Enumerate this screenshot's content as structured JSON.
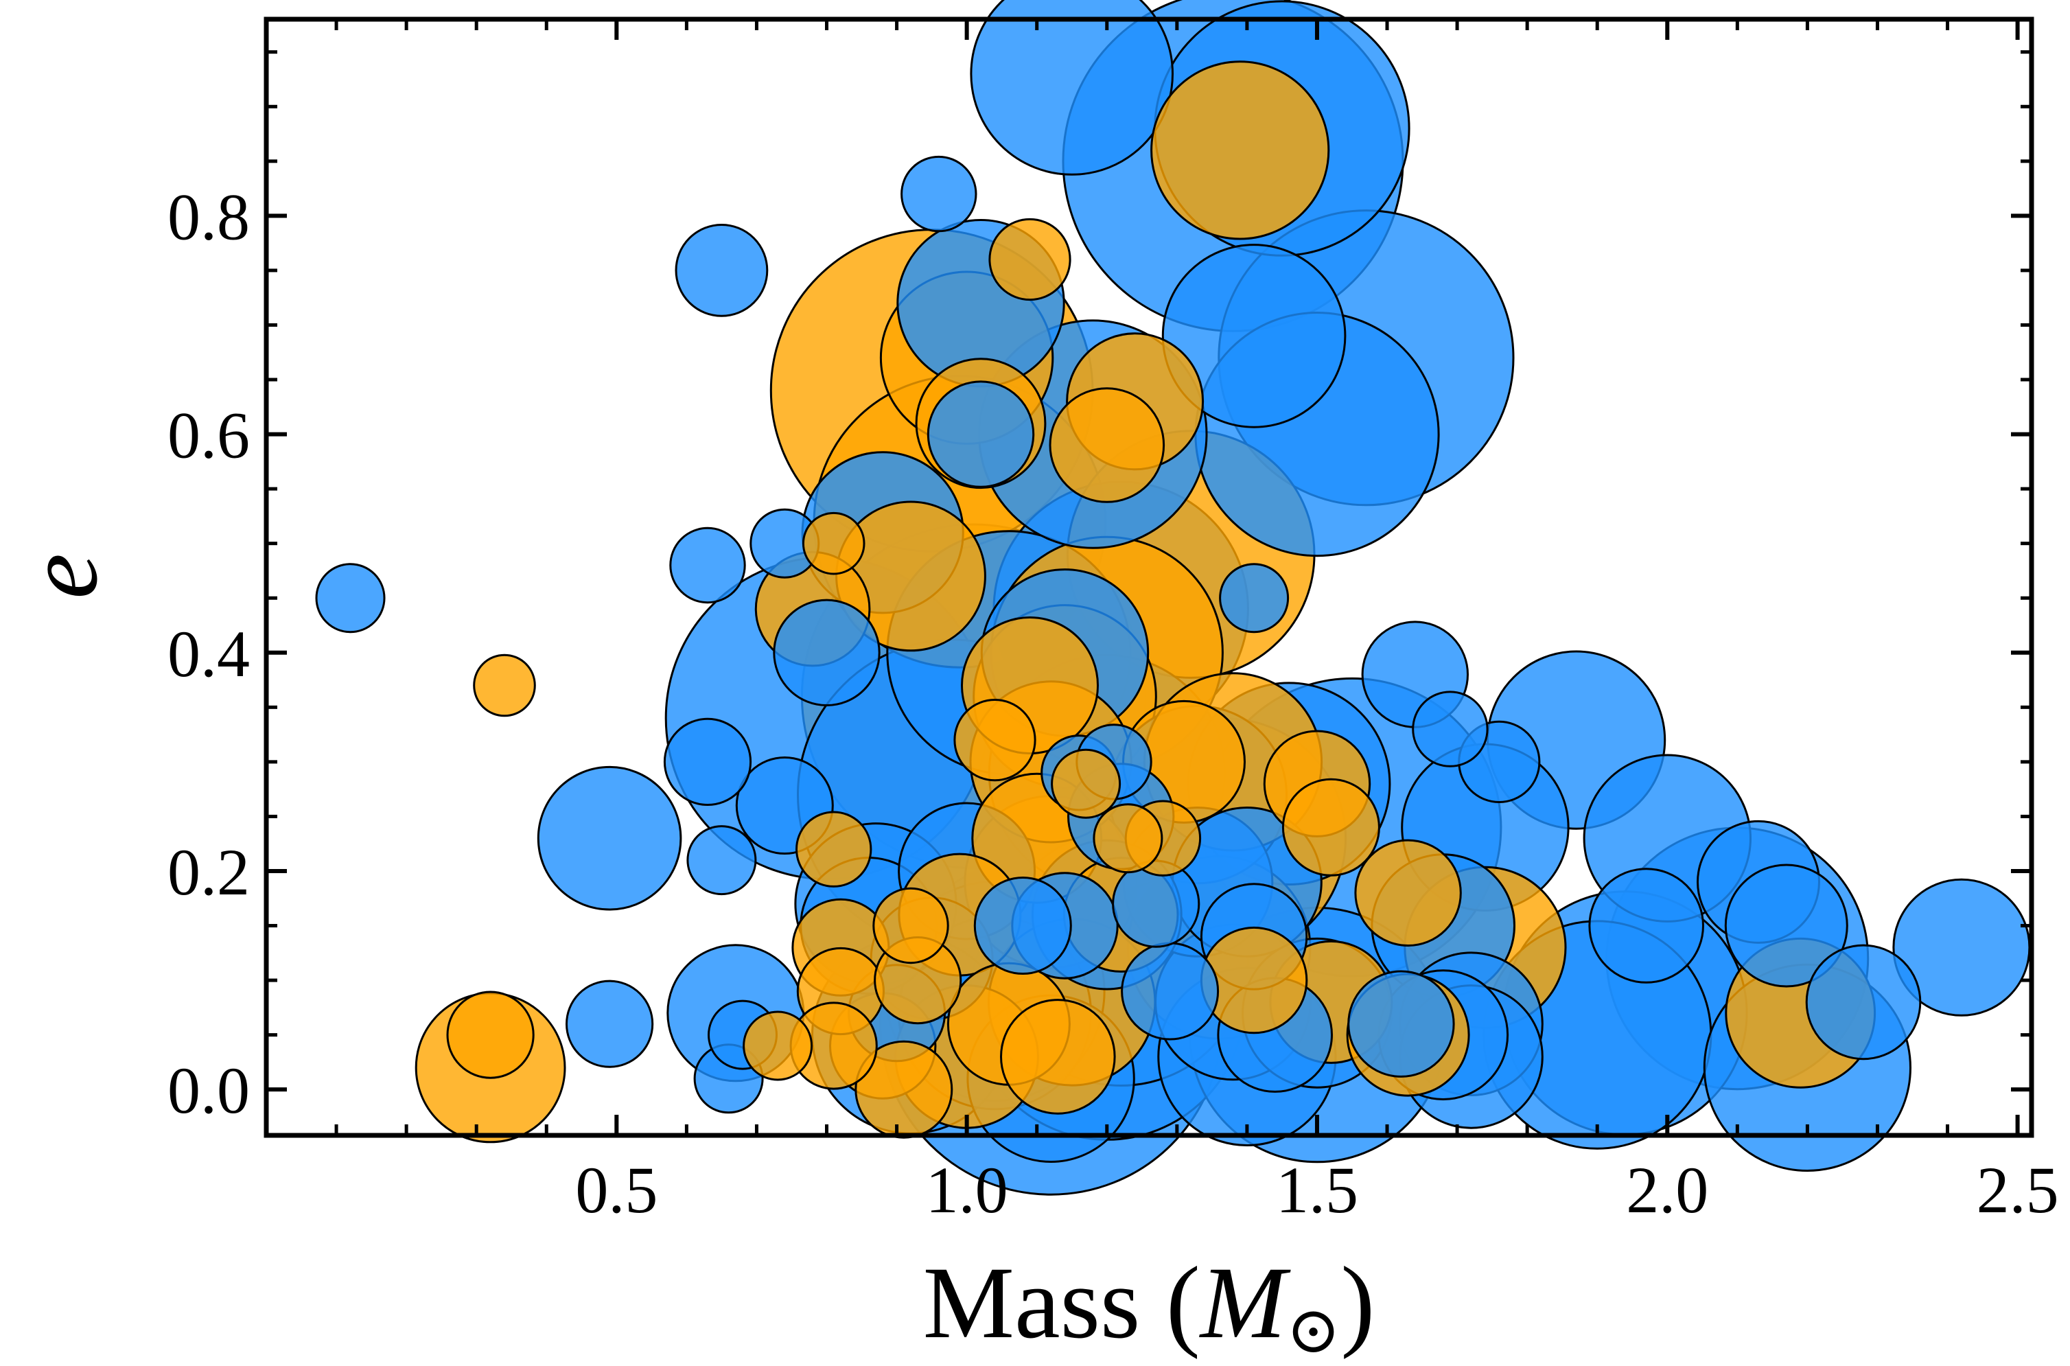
{
  "chart_data": {
    "type": "scatter",
    "title": "",
    "xlabel": {
      "main": "Mass (",
      "symbol": "M",
      "sub": "⊙",
      "close": ")"
    },
    "ylabel": "e",
    "xlim": [
      0.0,
      2.52
    ],
    "ylim": [
      -0.042,
      0.98
    ],
    "xticks": [
      0.5,
      1.0,
      1.5,
      2.0,
      2.5
    ],
    "xtick_labels": [
      "0.5",
      "1.0",
      "1.5",
      "2.0",
      "2.5"
    ],
    "yticks": [
      0.0,
      0.2,
      0.4,
      0.6,
      0.8
    ],
    "ytick_labels": [
      "0.0",
      "0.2",
      "0.4",
      "0.6",
      "0.8"
    ],
    "xminor_step": 0.1,
    "yminor_step": 0.05,
    "grid": false,
    "colors": {
      "blue": "#1e90ff",
      "orange": "#ffa500",
      "edge": "#000000"
    },
    "series": [
      {
        "color_key": "blue",
        "points": [
          {
            "x": 1.15,
            "y": 0.93,
            "s": 0.044
          },
          {
            "x": 1.38,
            "y": 0.85,
            "s": 0.125
          },
          {
            "x": 1.45,
            "y": 0.88,
            "s": 0.07
          },
          {
            "x": 0.96,
            "y": 0.82,
            "s": 0.006
          },
          {
            "x": 0.65,
            "y": 0.75,
            "s": 0.009
          },
          {
            "x": 1.02,
            "y": 0.72,
            "s": 0.03
          },
          {
            "x": 1.41,
            "y": 0.69,
            "s": 0.036
          },
          {
            "x": 1.57,
            "y": 0.67,
            "s": 0.094
          },
          {
            "x": 1.5,
            "y": 0.6,
            "s": 0.064
          },
          {
            "x": 1.18,
            "y": 0.6,
            "s": 0.056
          },
          {
            "x": 1.02,
            "y": 0.6,
            "s": 0.012
          },
          {
            "x": 0.88,
            "y": 0.51,
            "s": 0.028
          },
          {
            "x": 0.63,
            "y": 0.48,
            "s": 0.006
          },
          {
            "x": 0.74,
            "y": 0.5,
            "s": 0.005
          },
          {
            "x": 0.12,
            "y": 0.45,
            "s": 0.005
          },
          {
            "x": 1.41,
            "y": 0.45,
            "s": 0.005
          },
          {
            "x": 1.22,
            "y": 0.44,
            "s": 0.07
          },
          {
            "x": 1.06,
            "y": 0.4,
            "s": 0.064
          },
          {
            "x": 1.14,
            "y": 0.4,
            "s": 0.03
          },
          {
            "x": 0.8,
            "y": 0.4,
            "s": 0.012
          },
          {
            "x": 0.8,
            "y": 0.34,
            "s": 0.112
          },
          {
            "x": 0.63,
            "y": 0.3,
            "s": 0.008
          },
          {
            "x": 0.74,
            "y": 0.26,
            "s": 0.01
          },
          {
            "x": 0.98,
            "y": 0.27,
            "s": 0.104
          },
          {
            "x": 1.2,
            "y": 0.29,
            "s": 0.06
          },
          {
            "x": 1.33,
            "y": 0.27,
            "s": 0.034
          },
          {
            "x": 1.46,
            "y": 0.28,
            "s": 0.044
          },
          {
            "x": 1.64,
            "y": 0.38,
            "s": 0.012
          },
          {
            "x": 1.69,
            "y": 0.33,
            "s": 0.006
          },
          {
            "x": 1.76,
            "y": 0.3,
            "s": 0.007
          },
          {
            "x": 1.87,
            "y": 0.32,
            "s": 0.034
          },
          {
            "x": 1.74,
            "y": 0.24,
            "s": 0.03
          },
          {
            "x": 1.55,
            "y": 0.24,
            "s": 0.096
          },
          {
            "x": 2.0,
            "y": 0.23,
            "s": 0.03
          },
          {
            "x": 2.13,
            "y": 0.19,
            "s": 0.016
          },
          {
            "x": 0.49,
            "y": 0.23,
            "s": 0.022
          },
          {
            "x": 0.65,
            "y": 0.21,
            "s": 0.005
          },
          {
            "x": 0.87,
            "y": 0.17,
            "s": 0.028
          },
          {
            "x": 0.86,
            "y": 0.15,
            "s": 0.02
          },
          {
            "x": 1.0,
            "y": 0.2,
            "s": 0.02
          },
          {
            "x": 1.33,
            "y": 0.19,
            "s": 0.024
          },
          {
            "x": 1.4,
            "y": 0.19,
            "s": 0.024
          },
          {
            "x": 1.41,
            "y": 0.14,
            "s": 0.012
          },
          {
            "x": 1.68,
            "y": 0.15,
            "s": 0.022
          },
          {
            "x": 2.17,
            "y": 0.15,
            "s": 0.016
          },
          {
            "x": 1.97,
            "y": 0.15,
            "s": 0.014
          },
          {
            "x": 2.1,
            "y": 0.12,
            "s": 0.074
          },
          {
            "x": 2.42,
            "y": 0.13,
            "s": 0.02
          },
          {
            "x": 2.28,
            "y": 0.08,
            "s": 0.014
          },
          {
            "x": 1.94,
            "y": 0.07,
            "s": 0.064
          },
          {
            "x": 1.9,
            "y": 0.05,
            "s": 0.056
          },
          {
            "x": 2.2,
            "y": 0.02,
            "s": 0.046
          },
          {
            "x": 1.72,
            "y": 0.06,
            "s": 0.022
          },
          {
            "x": 1.72,
            "y": 0.03,
            "s": 0.022
          },
          {
            "x": 1.68,
            "y": 0.05,
            "s": 0.018
          },
          {
            "x": 1.62,
            "y": 0.06,
            "s": 0.012
          },
          {
            "x": 1.5,
            "y": 0.05,
            "s": 0.07
          },
          {
            "x": 1.5,
            "y": 0.07,
            "s": 0.024
          },
          {
            "x": 1.44,
            "y": 0.05,
            "s": 0.014
          },
          {
            "x": 1.38,
            "y": 0.08,
            "s": 0.026
          },
          {
            "x": 1.4,
            "y": 0.03,
            "s": 0.034
          },
          {
            "x": 1.22,
            "y": 0.12,
            "s": 0.07
          },
          {
            "x": 1.2,
            "y": 0.08,
            "s": 0.082
          },
          {
            "x": 1.2,
            "y": 0.16,
            "s": 0.024
          },
          {
            "x": 1.12,
            "y": 0.06,
            "s": 0.126
          },
          {
            "x": 1.04,
            "y": 0.09,
            "s": 0.052
          },
          {
            "x": 1.04,
            "y": 0.07,
            "s": 0.04
          },
          {
            "x": 1.12,
            "y": 0.01,
            "s": 0.03
          },
          {
            "x": 0.92,
            "y": 0.05,
            "s": 0.042
          },
          {
            "x": 0.95,
            "y": 0.12,
            "s": 0.016
          },
          {
            "x": 0.67,
            "y": 0.07,
            "s": 0.02
          },
          {
            "x": 0.66,
            "y": 0.01,
            "s": 0.005
          },
          {
            "x": 0.49,
            "y": 0.06,
            "s": 0.008
          },
          {
            "x": 1.14,
            "y": 0.15,
            "s": 0.012
          },
          {
            "x": 1.08,
            "y": 0.15,
            "s": 0.01
          },
          {
            "x": 1.27,
            "y": 0.17,
            "s": 0.008
          },
          {
            "x": 1.16,
            "y": 0.29,
            "s": 0.006
          },
          {
            "x": 1.22,
            "y": 0.25,
            "s": 0.012
          },
          {
            "x": 1.21,
            "y": 0.3,
            "s": 0.006
          },
          {
            "x": 0.9,
            "y": 0.07,
            "s": 0.01
          },
          {
            "x": 0.68,
            "y": 0.05,
            "s": 0.005
          },
          {
            "x": 1.29,
            "y": 0.09,
            "s": 0.01
          }
        ]
      },
      {
        "color_key": "orange",
        "points": [
          {
            "x": 1.39,
            "y": 0.86,
            "s": 0.034
          },
          {
            "x": 1.09,
            "y": 0.76,
            "s": 0.007
          },
          {
            "x": 0.95,
            "y": 0.64,
            "s": 0.112
          },
          {
            "x": 1.0,
            "y": 0.67,
            "s": 0.032
          },
          {
            "x": 1.24,
            "y": 0.63,
            "s": 0.02
          },
          {
            "x": 1.2,
            "y": 0.59,
            "s": 0.014
          },
          {
            "x": 1.02,
            "y": 0.61,
            "s": 0.018
          },
          {
            "x": 0.99,
            "y": 0.52,
            "s": 0.092
          },
          {
            "x": 1.32,
            "y": 0.49,
            "s": 0.066
          },
          {
            "x": 0.92,
            "y": 0.47,
            "s": 0.024
          },
          {
            "x": 0.78,
            "y": 0.44,
            "s": 0.014
          },
          {
            "x": 0.81,
            "y": 0.5,
            "s": 0.004
          },
          {
            "x": 1.01,
            "y": 0.36,
            "s": 0.128
          },
          {
            "x": 1.2,
            "y": 0.4,
            "s": 0.058
          },
          {
            "x": 1.09,
            "y": 0.37,
            "s": 0.02
          },
          {
            "x": 1.14,
            "y": 0.36,
            "s": 0.036
          },
          {
            "x": 1.12,
            "y": 0.3,
            "s": 0.028
          },
          {
            "x": 0.34,
            "y": 0.37,
            "s": 0.004
          },
          {
            "x": 1.38,
            "y": 0.3,
            "s": 0.034
          },
          {
            "x": 1.31,
            "y": 0.3,
            "s": 0.016
          },
          {
            "x": 1.5,
            "y": 0.28,
            "s": 0.012
          },
          {
            "x": 1.37,
            "y": 0.23,
            "s": 0.062
          },
          {
            "x": 1.52,
            "y": 0.24,
            "s": 0.01
          },
          {
            "x": 1.1,
            "y": 0.23,
            "s": 0.018
          },
          {
            "x": 1.12,
            "y": 0.19,
            "s": 0.032
          },
          {
            "x": 1.63,
            "y": 0.18,
            "s": 0.012
          },
          {
            "x": 1.74,
            "y": 0.13,
            "s": 0.028
          },
          {
            "x": 1.36,
            "y": 0.13,
            "s": 0.036
          },
          {
            "x": 1.22,
            "y": 0.16,
            "s": 0.014
          },
          {
            "x": 0.99,
            "y": 0.16,
            "s": 0.016
          },
          {
            "x": 0.81,
            "y": 0.22,
            "s": 0.006
          },
          {
            "x": 0.82,
            "y": 0.13,
            "s": 0.01
          },
          {
            "x": 0.82,
            "y": 0.09,
            "s": 0.008
          },
          {
            "x": 0.93,
            "y": 0.1,
            "s": 0.008
          },
          {
            "x": 1.15,
            "y": 0.08,
            "s": 0.03
          },
          {
            "x": 1.06,
            "y": 0.06,
            "s": 0.016
          },
          {
            "x": 1.0,
            "y": 0.03,
            "s": 0.022
          },
          {
            "x": 1.13,
            "y": 0.03,
            "s": 0.014
          },
          {
            "x": 0.88,
            "y": 0.04,
            "s": 0.012
          },
          {
            "x": 0.91,
            "y": 0.0,
            "s": 0.01
          },
          {
            "x": 0.81,
            "y": 0.04,
            "s": 0.008
          },
          {
            "x": 0.32,
            "y": 0.02,
            "s": 0.024
          },
          {
            "x": 0.32,
            "y": 0.05,
            "s": 0.008
          },
          {
            "x": 0.73,
            "y": 0.04,
            "s": 0.005
          },
          {
            "x": 1.41,
            "y": 0.1,
            "s": 0.012
          },
          {
            "x": 1.52,
            "y": 0.08,
            "s": 0.016
          },
          {
            "x": 1.63,
            "y": 0.05,
            "s": 0.016
          },
          {
            "x": 2.19,
            "y": 0.07,
            "s": 0.024
          },
          {
            "x": 1.28,
            "y": 0.23,
            "s": 0.006
          },
          {
            "x": 1.23,
            "y": 0.23,
            "s": 0.005
          },
          {
            "x": 1.04,
            "y": 0.32,
            "s": 0.007
          },
          {
            "x": 0.92,
            "y": 0.15,
            "s": 0.006
          },
          {
            "x": 1.17,
            "y": 0.28,
            "s": 0.005
          }
        ]
      }
    ]
  }
}
